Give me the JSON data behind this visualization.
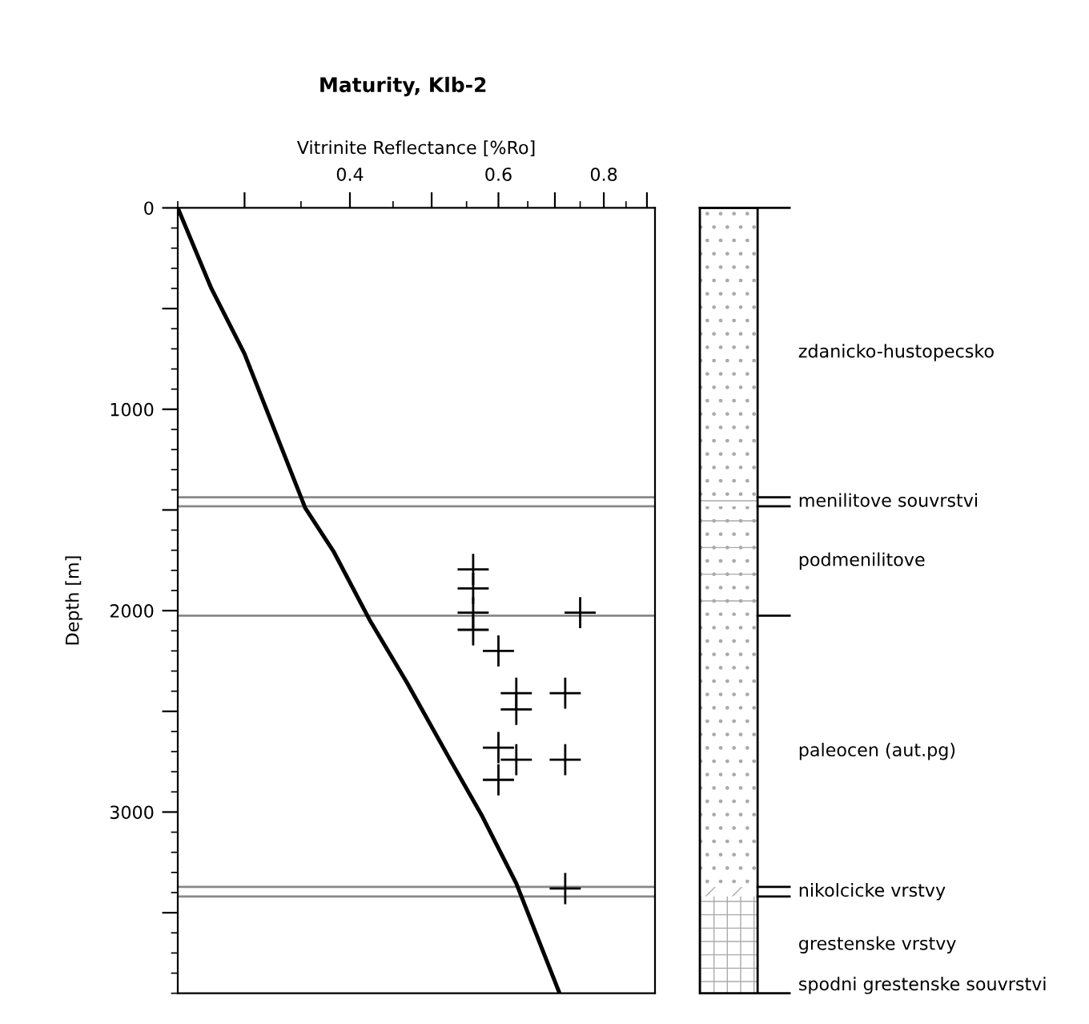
{
  "chart_data": {
    "type": "line",
    "title": "Maturity, Klb-2",
    "xlabel": "Vitrinite Reflectance [%Ro]",
    "ylabel": "Depth [m]",
    "log": "x",
    "xlim": [
      0.25,
      0.92
    ],
    "xticks": [
      {
        "value": 0.3,
        "label": null
      },
      0.4,
      {
        "value": 0.5,
        "label": null
      },
      0.6,
      {
        "value": 0.7,
        "label": null
      },
      0.8,
      {
        "value": 0.9,
        "label": null
      }
    ],
    "ylim": [
      3900,
      0
    ],
    "yticks": [
      0,
      {
        "value": 500,
        "label": null
      },
      1000,
      {
        "value": 1500,
        "label": null
      },
      2000,
      {
        "value": 2500,
        "label": null
      },
      3000,
      {
        "value": 3500,
        "label": null
      }
    ],
    "grid": false,
    "legend": false,
    "series": [
      {
        "color": "#000000",
        "line_style": "solid",
        "marker": "none",
        "x": [
          0.25,
          0.274,
          0.3,
          0.351,
          0.354,
          0.383,
          0.422,
          0.467,
          0.525,
          0.573,
          0.63,
          0.709
        ],
        "values": [
          0,
          400,
          725,
          1450,
          1490,
          1710,
          2045,
          2355,
          2735,
          3015,
          3355,
          3900
        ]
      },
      {
        "type": "scatter",
        "color": "#000000",
        "marker": "cross",
        "x": [
          0.56,
          0.56,
          0.56,
          0.56,
          0.6,
          0.75,
          0.63,
          0.72,
          0.63,
          0.6,
          0.63,
          0.72,
          0.6,
          0.72
        ],
        "values": [
          1795,
          1890,
          2010,
          2095,
          2200,
          2010,
          2410,
          2410,
          2490,
          2680,
          2740,
          2740,
          2840,
          3380
        ]
      }
    ],
    "ref_lines": [
      {
        "axis": "y",
        "value": 1437,
        "color": "#888888"
      },
      {
        "axis": "y",
        "value": 1482,
        "color": "#888888"
      },
      {
        "axis": "y",
        "value": 2025,
        "color": "#888888"
      },
      {
        "axis": "y",
        "value": 3372,
        "color": "#888888"
      },
      {
        "axis": "y",
        "value": 3419,
        "color": "#888888"
      }
    ],
    "annotations": [
      "zdanicko-hustopecsko",
      "menilitove souvrstvi",
      "podmenilitove",
      "paleocen (aut.pg)",
      "nikolcicke vrstvy",
      "grestenske vrstvy",
      "spodni grestenske souvrstvi"
    ]
  }
}
